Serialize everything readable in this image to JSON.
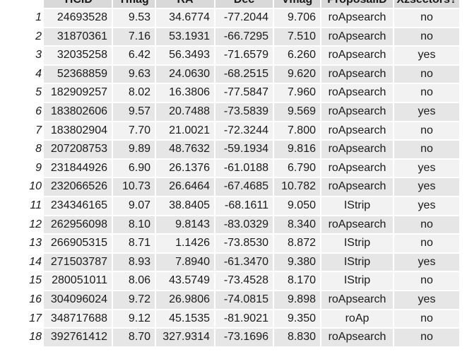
{
  "table": {
    "headers": [
      "TICID",
      "Tmag",
      "RA",
      "Dec",
      "Vmag",
      "ProposalID",
      "Xzsectors?"
    ],
    "rows": [
      {
        "index": "1",
        "ticid": "24693528",
        "tmag": "9.53",
        "ra": "34.6774",
        "dec": "-77.2044",
        "vmag": "9.706",
        "proposal": "roApsearch",
        "xz": "no"
      },
      {
        "index": "2",
        "ticid": "31870361",
        "tmag": "7.16",
        "ra": "53.1931",
        "dec": "-66.7295",
        "vmag": "7.510",
        "proposal": "roApsearch",
        "xz": "no"
      },
      {
        "index": "3",
        "ticid": "32035258",
        "tmag": "6.42",
        "ra": "56.3493",
        "dec": "-71.6579",
        "vmag": "6.260",
        "proposal": "roApsearch",
        "xz": "yes"
      },
      {
        "index": "4",
        "ticid": "52368859",
        "tmag": "9.63",
        "ra": "24.0630",
        "dec": "-68.2515",
        "vmag": "9.620",
        "proposal": "roApsearch",
        "xz": "no"
      },
      {
        "index": "5",
        "ticid": "182909257",
        "tmag": "8.02",
        "ra": "16.3806",
        "dec": "-77.5847",
        "vmag": "7.960",
        "proposal": "roApsearch",
        "xz": "no"
      },
      {
        "index": "6",
        "ticid": "183802606",
        "tmag": "9.57",
        "ra": "20.7488",
        "dec": "-73.5839",
        "vmag": "9.569",
        "proposal": "roApsearch",
        "xz": "yes"
      },
      {
        "index": "7",
        "ticid": "183802904",
        "tmag": "7.70",
        "ra": "21.0021",
        "dec": "-72.3244",
        "vmag": "7.800",
        "proposal": "roApsearch",
        "xz": "no"
      },
      {
        "index": "8",
        "ticid": "207208753",
        "tmag": "9.89",
        "ra": "48.7632",
        "dec": "-59.1934",
        "vmag": "9.816",
        "proposal": "roApsearch",
        "xz": "no"
      },
      {
        "index": "9",
        "ticid": "231844926",
        "tmag": "6.90",
        "ra": "26.1376",
        "dec": "-61.0188",
        "vmag": "6.790",
        "proposal": "roApsearch",
        "xz": "yes"
      },
      {
        "index": "10",
        "ticid": "232066526",
        "tmag": "10.73",
        "ra": "26.6464",
        "dec": "-67.4685",
        "vmag": "10.782",
        "proposal": "roApsearch",
        "xz": "yes"
      },
      {
        "index": "11",
        "ticid": "234346165",
        "tmag": "9.07",
        "ra": "38.8405",
        "dec": "-68.1611",
        "vmag": "9.050",
        "proposal": "IStrip",
        "xz": "yes"
      },
      {
        "index": "12",
        "ticid": "262956098",
        "tmag": "8.10",
        "ra": "9.8143",
        "dec": "-83.0329",
        "vmag": "8.340",
        "proposal": "roApsearch",
        "xz": "no"
      },
      {
        "index": "13",
        "ticid": "266905315",
        "tmag": "8.71",
        "ra": "1.1426",
        "dec": "-73.8530",
        "vmag": "8.872",
        "proposal": "IStrip",
        "xz": "no"
      },
      {
        "index": "14",
        "ticid": "271503787",
        "tmag": "8.93",
        "ra": "7.8940",
        "dec": "-61.3470",
        "vmag": "9.380",
        "proposal": "IStrip",
        "xz": "yes"
      },
      {
        "index": "15",
        "ticid": "280051011",
        "tmag": "8.06",
        "ra": "43.5749",
        "dec": "-73.4528",
        "vmag": "8.170",
        "proposal": "IStrip",
        "xz": "no"
      },
      {
        "index": "16",
        "ticid": "304096024",
        "tmag": "9.72",
        "ra": "26.9806",
        "dec": "-74.0815",
        "vmag": "9.898",
        "proposal": "roApsearch",
        "xz": "yes"
      },
      {
        "index": "17",
        "ticid": "348717688",
        "tmag": "9.12",
        "ra": "45.1535",
        "dec": "-81.9021",
        "vmag": "9.350",
        "proposal": "roAp",
        "xz": "no"
      },
      {
        "index": "18",
        "ticid": "392761412",
        "tmag": "8.70",
        "ra": "327.9314",
        "dec": "-73.1696",
        "vmag": "8.830",
        "proposal": "roApsearch",
        "xz": "no"
      }
    ]
  }
}
